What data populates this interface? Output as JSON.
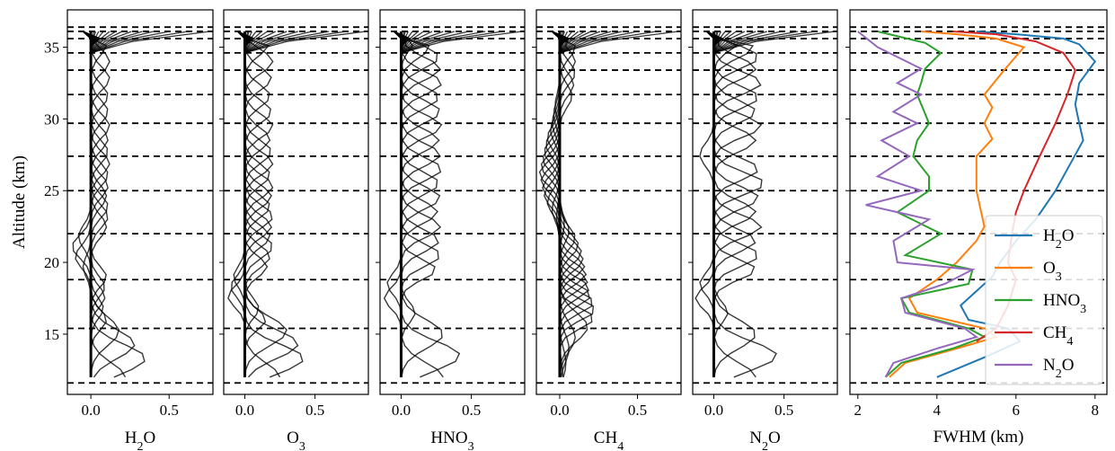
{
  "figure": {
    "ylabel": "Altitude (km)",
    "ylim": [
      10.8,
      37.6
    ],
    "yticks": [
      "15",
      "20",
      "25",
      "30",
      "35"
    ],
    "ytick_values": [
      15,
      20,
      25,
      30,
      35
    ],
    "dashed_levels_km": [
      11.6,
      15.4,
      18.8,
      22.0,
      25.0,
      27.4,
      29.7,
      31.7,
      33.4,
      34.6,
      35.6,
      36.1,
      36.4
    ]
  },
  "chart_data": [
    {
      "type": "line",
      "name": "averaging-kernels-h2o",
      "xlabel": "H₂O",
      "xlabel_parts": {
        "base": "H",
        "sub": "2",
        "rest": "O"
      },
      "xlim": [
        -0.15,
        0.78
      ],
      "xticks": [
        "0.0",
        "0.5"
      ],
      "xtick_values": [
        0.0,
        0.5
      ],
      "kernel_count": 28,
      "peak_altitudes_km": [
        12.0,
        13.3,
        14.3,
        15.2,
        16.0,
        16.8,
        17.6,
        18.3,
        19.0,
        19.7,
        20.4,
        21.1,
        21.8,
        22.5,
        23.2,
        23.9,
        24.6,
        25.3,
        26.1,
        26.9,
        27.7,
        28.6,
        29.5,
        30.5,
        31.6,
        32.8,
        34.0,
        35.2
      ],
      "peak_values": [
        0.22,
        0.35,
        0.28,
        0.18,
        0.1,
        0.08,
        0.09,
        0.09,
        0.1,
        -0.05,
        -0.1,
        -0.12,
        -0.08,
        0.1,
        0.11,
        0.11,
        0.1,
        0.11,
        0.11,
        0.12,
        0.11,
        0.11,
        0.12,
        0.11,
        0.11,
        0.12,
        0.12,
        0.1
      ],
      "top_spike_values": [
        0.02,
        0.03,
        0.05,
        0.08,
        0.12,
        0.16,
        0.2,
        0.26,
        0.33,
        0.4,
        0.5,
        0.62,
        0.76
      ]
    },
    {
      "type": "line",
      "name": "averaging-kernels-o3",
      "xlabel": "O₃",
      "xlabel_parts": {
        "base": "O",
        "sub": "3",
        "rest": ""
      },
      "xlim": [
        -0.15,
        0.88
      ],
      "xticks": [
        "0.0",
        "0.5"
      ],
      "xtick_values": [
        0.0,
        0.5
      ],
      "kernel_count": 28,
      "peak_altitudes_km": [
        12.0,
        13.3,
        14.3,
        15.2,
        16.0,
        16.8,
        17.6,
        18.3,
        19.0,
        19.7,
        20.4,
        21.1,
        21.8,
        22.5,
        23.2,
        23.9,
        24.6,
        25.3,
        26.1,
        26.9,
        27.7,
        28.6,
        29.5,
        30.5,
        31.6,
        32.8,
        34.0,
        35.2
      ],
      "peak_values": [
        0.25,
        0.42,
        0.38,
        0.3,
        0.15,
        0.1,
        -0.12,
        -0.1,
        -0.08,
        0.16,
        0.18,
        0.2,
        0.18,
        0.19,
        0.2,
        0.18,
        0.19,
        0.2,
        0.18,
        0.2,
        0.19,
        0.18,
        0.2,
        0.19,
        0.18,
        0.19,
        0.2,
        0.17
      ],
      "top_spike_values": [
        0.02,
        0.03,
        0.05,
        0.08,
        0.12,
        0.16,
        0.22,
        0.3,
        0.38,
        0.48,
        0.6,
        0.72,
        0.86
      ]
    },
    {
      "type": "line",
      "name": "averaging-kernels-hno3",
      "xlabel": "HNO₃",
      "xlabel_parts": {
        "base": "HNO",
        "sub": "3",
        "rest": ""
      },
      "xlim": [
        -0.15,
        0.88
      ],
      "xticks": [
        "0.0",
        "0.5"
      ],
      "xtick_values": [
        0.0,
        0.5
      ],
      "kernel_count": 24,
      "peak_altitudes_km": [
        12.0,
        13.5,
        15.0,
        16.5,
        17.5,
        18.5,
        19.5,
        20.5,
        21.5,
        22.5,
        23.5,
        24.5,
        25.5,
        26.5,
        27.5,
        28.5,
        29.5,
        30.5,
        31.5,
        32.5,
        33.5,
        34.3,
        35.0,
        35.6
      ],
      "peak_values": [
        0.3,
        0.42,
        0.3,
        0.1,
        -0.12,
        -0.1,
        0.25,
        0.28,
        0.27,
        0.28,
        0.26,
        0.28,
        0.27,
        0.29,
        0.28,
        0.27,
        0.29,
        0.28,
        0.27,
        0.29,
        0.28,
        0.27,
        0.2,
        0.1
      ],
      "top_spike_values": [
        0.02,
        0.03,
        0.05,
        0.08,
        0.12,
        0.16,
        0.22,
        0.3,
        0.38,
        0.48,
        0.6,
        0.72,
        0.86
      ]
    },
    {
      "type": "line",
      "name": "averaging-kernels-ch4",
      "xlabel": "CH₄",
      "xlabel_parts": {
        "base": "CH",
        "sub": "4",
        "rest": ""
      },
      "xlim": [
        -0.15,
        0.78
      ],
      "xticks": [
        "0.0",
        "0.5"
      ],
      "xtick_values": [
        0.0,
        0.5
      ],
      "kernel_count": 40,
      "peak_altitudes_km": [
        12.0,
        13.0,
        14.0,
        14.8,
        15.5,
        16.1,
        16.7,
        17.2,
        17.7,
        18.2,
        18.7,
        19.2,
        19.7,
        20.2,
        20.7,
        21.2,
        21.7,
        22.2,
        22.7,
        23.2,
        23.7,
        24.2,
        24.7,
        25.2,
        25.7,
        26.2,
        26.7,
        27.2,
        27.7,
        28.2,
        28.7,
        29.2,
        29.7,
        30.3,
        30.9,
        31.6,
        32.4,
        33.2,
        34.0,
        35.0
      ],
      "peak_values": [
        0.02,
        0.04,
        0.06,
        0.1,
        0.18,
        0.22,
        0.23,
        0.22,
        0.2,
        0.19,
        0.18,
        0.17,
        0.16,
        0.15,
        0.14,
        0.12,
        0.1,
        0.06,
        0.03,
        -0.02,
        -0.05,
        -0.08,
        -0.1,
        -0.11,
        -0.12,
        -0.13,
        -0.12,
        -0.11,
        -0.1,
        -0.09,
        -0.08,
        -0.06,
        -0.05,
        -0.04,
        -0.03,
        0.08,
        0.09,
        0.1,
        0.1,
        0.1
      ],
      "top_spike_values": [
        0.02,
        0.03,
        0.05,
        0.08,
        0.12,
        0.16,
        0.2,
        0.26,
        0.33,
        0.4,
        0.5,
        0.62,
        0.76
      ]
    },
    {
      "type": "line",
      "name": "averaging-kernels-n2o",
      "xlabel": "N₂O",
      "xlabel_parts": {
        "base": "N",
        "sub": "2",
        "rest": "O"
      },
      "xlim": [
        -0.15,
        0.88
      ],
      "xticks": [
        "0.0",
        "0.5"
      ],
      "xtick_values": [
        0.0,
        0.5
      ],
      "kernel_count": 24,
      "peak_altitudes_km": [
        12.0,
        13.5,
        15.0,
        16.5,
        17.5,
        18.5,
        19.5,
        20.5,
        21.5,
        22.5,
        23.5,
        24.5,
        25.5,
        26.5,
        27.5,
        28.5,
        29.5,
        30.5,
        31.5,
        32.5,
        33.5,
        34.3,
        35.0,
        35.6
      ],
      "peak_values": [
        0.3,
        0.45,
        0.3,
        0.1,
        -0.13,
        -0.1,
        0.3,
        0.32,
        0.3,
        0.34,
        0.3,
        0.32,
        0.36,
        0.32,
        -0.1,
        0.3,
        0.34,
        0.3,
        0.32,
        0.34,
        0.3,
        0.32,
        0.28,
        0.2
      ],
      "top_spike_values": [
        0.02,
        0.03,
        0.05,
        0.08,
        0.12,
        0.16,
        0.22,
        0.3,
        0.38,
        0.48,
        0.6,
        0.72,
        0.86
      ]
    },
    {
      "type": "line",
      "name": "fwhm",
      "xlabel": "FWHM (km)",
      "xlim": [
        1.8,
        8.3
      ],
      "xticks": [
        "2",
        "4",
        "6",
        "8"
      ],
      "xtick_values": [
        2,
        4,
        6,
        8
      ],
      "legend_position": "lower-right",
      "series": [
        {
          "name": "H₂O",
          "name_parts": {
            "base": "H",
            "sub": "2",
            "rest": "O"
          },
          "color": "#1f77b4",
          "x": [
            4.0,
            5.3,
            6.1,
            5.8,
            4.8,
            4.6,
            5.0,
            5.4,
            5.6,
            6.0,
            6.5,
            7.0,
            7.5,
            7.7,
            7.6,
            7.5,
            7.6,
            8.0,
            7.6,
            7.2,
            6.0,
            5.0
          ],
          "y": [
            12.0,
            13.5,
            14.5,
            15.4,
            16.0,
            17.0,
            18.0,
            19.0,
            20.0,
            21.5,
            23.0,
            25.0,
            27.5,
            28.5,
            29.7,
            31.0,
            32.5,
            34.0,
            35.2,
            35.6,
            35.9,
            36.1
          ]
        },
        {
          "name": "O₃",
          "name_parts": {
            "base": "O",
            "sub": "3",
            "rest": ""
          },
          "color": "#ff7f0e",
          "x": [
            2.8,
            3.2,
            4.5,
            5.5,
            5.2,
            3.5,
            3.3,
            4.0,
            4.5,
            5.0,
            5.2,
            5.0,
            5.0,
            5.4,
            5.2,
            5.4,
            5.2,
            5.7,
            6.2,
            5.5,
            4.5,
            3.6
          ],
          "y": [
            12.0,
            13.0,
            14.0,
            14.8,
            15.4,
            16.5,
            17.5,
            18.8,
            20.0,
            21.5,
            22.5,
            25.0,
            27.4,
            28.6,
            29.7,
            30.8,
            31.7,
            33.4,
            35.0,
            35.6,
            35.9,
            36.1
          ]
        },
        {
          "name": "HNO₃",
          "name_parts": {
            "base": "HNO",
            "sub": "3",
            "rest": ""
          },
          "color": "#2ca02c",
          "x": [
            2.7,
            3.1,
            4.4,
            5.2,
            4.8,
            3.3,
            3.1,
            4.8,
            4.9,
            3.2,
            4.1,
            3.0,
            3.8,
            3.8,
            3.4,
            3.5,
            3.8,
            3.5,
            3.6,
            3.7,
            4.1,
            3.7,
            2.5
          ],
          "y": [
            12.0,
            13.0,
            14.0,
            14.8,
            15.4,
            16.5,
            17.5,
            18.5,
            19.5,
            20.5,
            22.0,
            23.5,
            25.0,
            26.0,
            27.4,
            28.5,
            29.7,
            31.7,
            32.5,
            33.5,
            34.6,
            35.3,
            36.1
          ]
        },
        {
          "name": "CH₄",
          "name_parts": {
            "base": "CH",
            "sub": "4",
            "rest": ""
          },
          "color": "#d62728",
          "x": [
            5.0,
            5.5,
            5.8,
            6.0,
            5.8,
            5.9,
            6.0,
            6.2,
            6.6,
            7.0,
            7.3,
            7.5,
            7.2,
            6.5,
            5.5,
            4.4
          ],
          "y": [
            14.5,
            15.4,
            17.0,
            18.8,
            20.0,
            22.0,
            23.5,
            25.0,
            27.4,
            29.7,
            31.7,
            33.4,
            34.6,
            35.4,
            35.9,
            36.1
          ]
        },
        {
          "name": "N₂O",
          "name_parts": {
            "base": "N",
            "sub": "2",
            "rest": "O"
          },
          "color": "#9467bd",
          "x": [
            2.7,
            2.9,
            4.0,
            5.0,
            4.7,
            3.2,
            3.1,
            4.2,
            4.9,
            3.0,
            2.9,
            3.8,
            2.2,
            3.6,
            2.5,
            3.3,
            2.6,
            3.5,
            2.9,
            3.6,
            3.0,
            3.6,
            2.5,
            2.0
          ],
          "y": [
            12.0,
            13.0,
            14.0,
            14.8,
            15.4,
            16.5,
            17.5,
            18.5,
            19.5,
            20.0,
            21.5,
            23.0,
            24.0,
            25.0,
            26.0,
            27.4,
            28.5,
            29.7,
            30.5,
            31.7,
            32.5,
            33.5,
            35.0,
            36.1
          ]
        }
      ]
    }
  ]
}
